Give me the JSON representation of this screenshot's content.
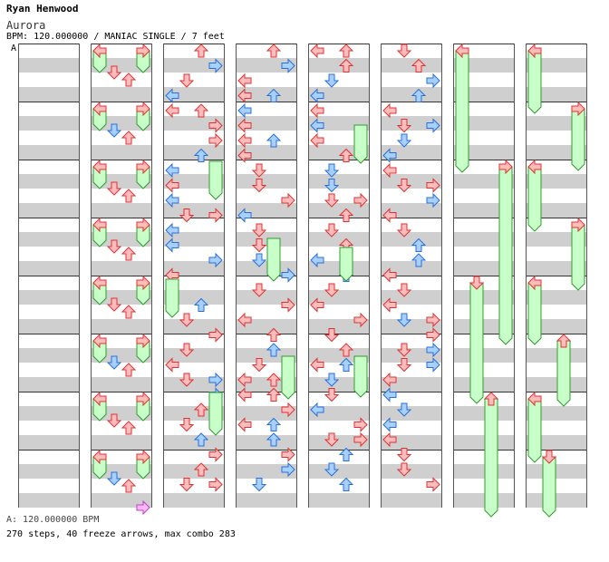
{
  "header": {
    "author": "Ryan Henwood",
    "song_title": "Aurora",
    "meta": "BPM: 120.000000 / MANIAC SINGLE / 7 feet",
    "bpm_marker": "A"
  },
  "footer": {
    "bpm_legend": "A: 120.000000 BPM",
    "stats": "270 steps, 40 freeze arrows, max combo 283"
  },
  "colors": {
    "background": "#ffffff",
    "stripe": "#cfcfcf",
    "red_arrow_fill": "#ffbcbc",
    "red_arrow_stroke": "#dd3333",
    "blue_arrow_fill": "#a8d0ff",
    "blue_arrow_stroke": "#2a6fd8",
    "pink_arrow_fill": "#ffb8ff",
    "pink_arrow_stroke": "#c040c0",
    "freeze_fill": "#c8ffc8",
    "freeze_stroke": "#339933"
  },
  "chart": {
    "column_count": 8,
    "measures_per_column": 8,
    "lanes": [
      "left",
      "down",
      "up",
      "right"
    ]
  }
}
